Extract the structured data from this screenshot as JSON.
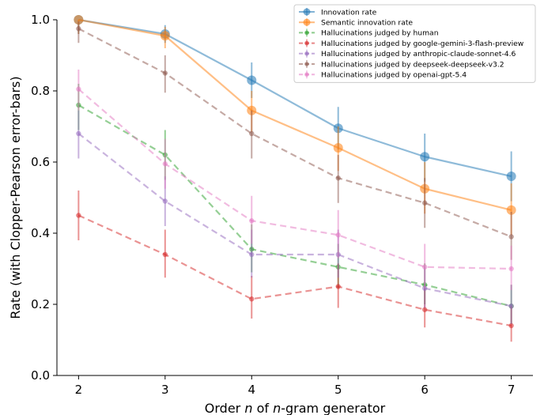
{
  "chart_data": {
    "type": "line",
    "title": "",
    "xlabel_parts": [
      "Order ",
      "n",
      " of ",
      "n",
      "-gram generator"
    ],
    "ylabel": "Rate (with Clopper-Pearson error-bars)",
    "x": [
      2,
      3,
      4,
      5,
      6,
      7
    ],
    "xlim": [
      1.75,
      7.25
    ],
    "ylim": [
      0,
      1
    ],
    "xticks": [
      "2",
      "3",
      "4",
      "5",
      "6",
      "7"
    ],
    "yticks": [
      "0.0",
      "0.2",
      "0.4",
      "0.6",
      "0.8",
      "1.0"
    ],
    "grid": false,
    "legend_position": "top-right",
    "series": [
      {
        "name": "Innovation rate",
        "color": "#1f77b4",
        "style": "solid",
        "marker": "large",
        "values": [
          1.0,
          0.96,
          0.83,
          0.695,
          0.615,
          0.56
        ],
        "lower": [
          0.96,
          0.935,
          0.78,
          0.635,
          0.545,
          0.49
        ],
        "upper": [
          1.0,
          0.985,
          0.88,
          0.755,
          0.68,
          0.63
        ]
      },
      {
        "name": "Semantic innovation rate",
        "color": "#ff7f0e",
        "style": "solid",
        "marker": "large",
        "values": [
          1.0,
          0.955,
          0.745,
          0.64,
          0.525,
          0.465
        ],
        "lower": [
          0.96,
          0.92,
          0.685,
          0.575,
          0.455,
          0.395
        ],
        "upper": [
          1.0,
          0.98,
          0.8,
          0.7,
          0.6,
          0.54
        ]
      },
      {
        "name": "Hallucinations judged by human",
        "color": "#2ca02c",
        "style": "dashed",
        "marker": "small",
        "values": [
          0.76,
          0.62,
          0.355,
          0.305,
          0.255,
          0.195
        ],
        "lower": [
          0.69,
          0.55,
          0.29,
          0.245,
          0.2,
          0.145
        ],
        "upper": [
          0.82,
          0.69,
          0.425,
          0.37,
          0.315,
          0.255
        ]
      },
      {
        "name": "Hallucinations judged by google-gemini-3-flash-preview",
        "color": "#d62728",
        "style": "dashed",
        "marker": "small",
        "values": [
          0.45,
          0.34,
          0.215,
          0.25,
          0.185,
          0.14
        ],
        "lower": [
          0.38,
          0.275,
          0.16,
          0.19,
          0.135,
          0.095
        ],
        "upper": [
          0.52,
          0.41,
          0.28,
          0.315,
          0.245,
          0.195
        ]
      },
      {
        "name": "Hallucinations judged by anthropic-claude-sonnet-4.6",
        "color": "#9467bd",
        "style": "dashed",
        "marker": "small",
        "values": [
          0.68,
          0.49,
          0.34,
          0.34,
          0.245,
          0.195
        ],
        "lower": [
          0.61,
          0.42,
          0.275,
          0.275,
          0.19,
          0.145
        ],
        "upper": [
          0.745,
          0.56,
          0.41,
          0.41,
          0.305,
          0.255
        ]
      },
      {
        "name": "Hallucinations judged by deepseek-deepseek-v3.2",
        "color": "#8c564b",
        "style": "dashed",
        "marker": "small",
        "values": [
          0.975,
          0.85,
          0.68,
          0.555,
          0.485,
          0.39
        ],
        "lower": [
          0.935,
          0.795,
          0.61,
          0.485,
          0.415,
          0.325
        ],
        "upper": [
          0.995,
          0.9,
          0.745,
          0.62,
          0.555,
          0.46
        ]
      },
      {
        "name": "Hallucinations judged by openai-gpt-5.4",
        "color": "#e377c2",
        "style": "dashed",
        "marker": "small",
        "values": [
          0.805,
          0.595,
          0.435,
          0.395,
          0.305,
          0.3
        ],
        "lower": [
          0.745,
          0.525,
          0.37,
          0.33,
          0.245,
          0.24
        ],
        "upper": [
          0.86,
          0.665,
          0.505,
          0.465,
          0.37,
          0.365
        ]
      }
    ]
  }
}
